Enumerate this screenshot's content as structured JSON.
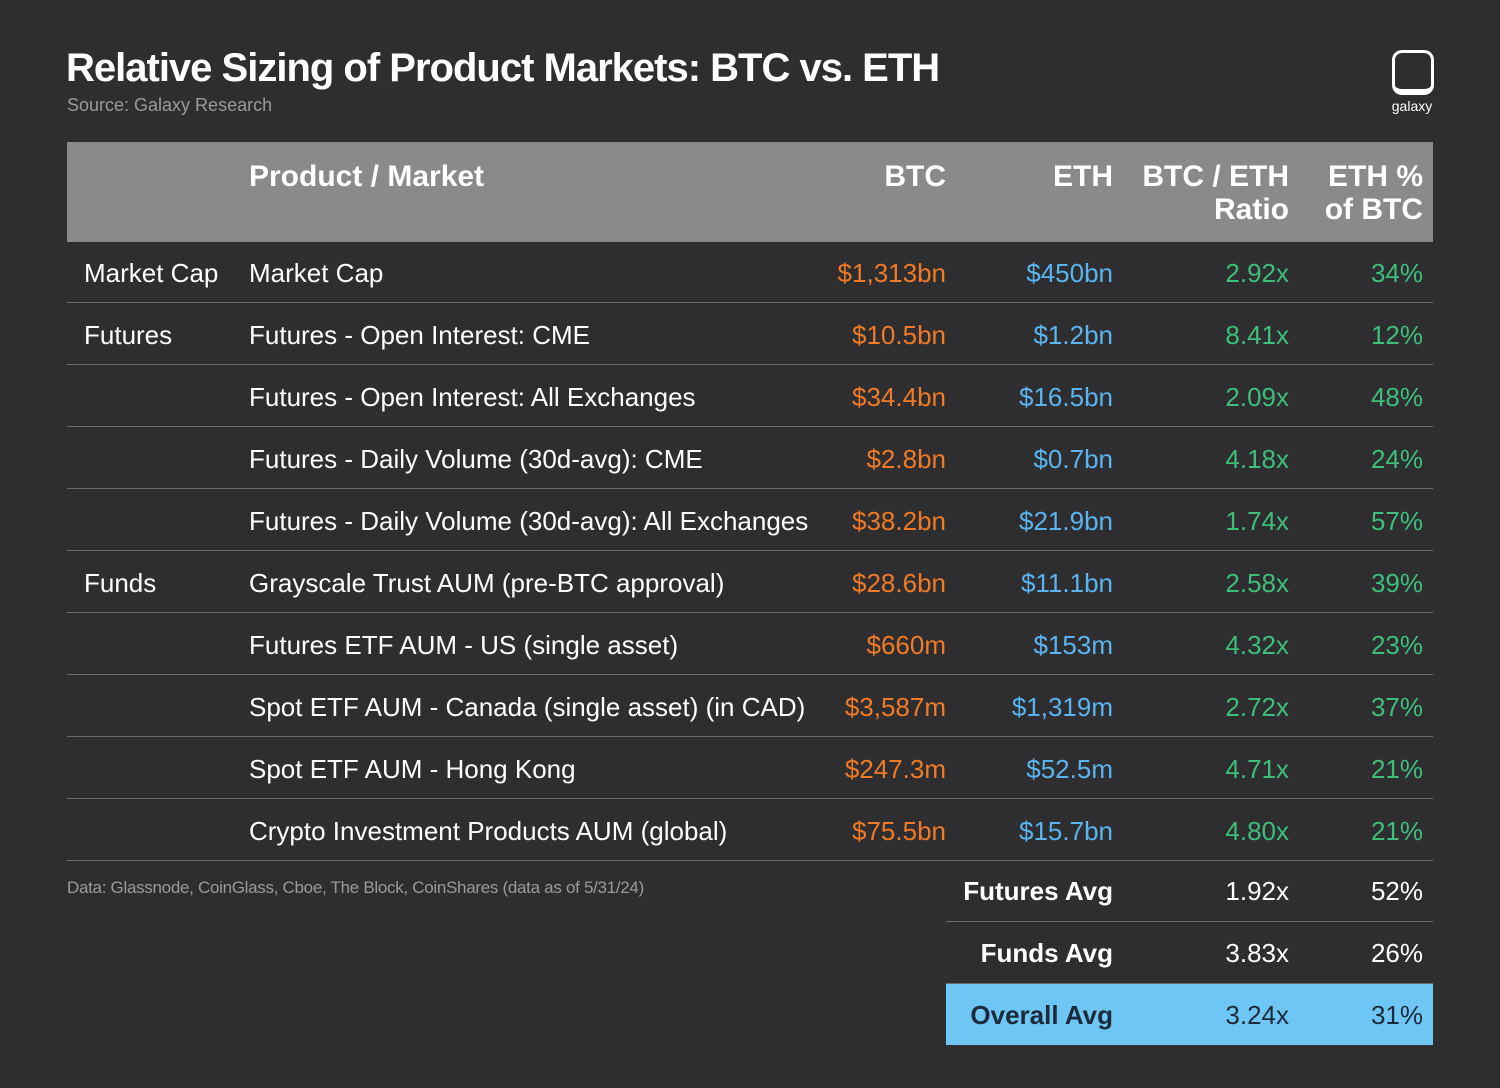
{
  "header": {
    "title": "Relative Sizing of Product Markets: BTC vs. ETH",
    "source": "Source: Galaxy Research",
    "logo": "galaxy"
  },
  "table": {
    "columns": [
      "Product / Market",
      "BTC",
      "ETH",
      "BTC / ETH Ratio",
      "ETH % of BTC"
    ],
    "rows": [
      {
        "group": "Market Cap",
        "product": "Market Cap",
        "btc": "$1,313bn",
        "eth": "$450bn",
        "ratio": "2.92x",
        "eth_pct": "34%"
      },
      {
        "group": "Futures",
        "product": "Futures - Open Interest: CME",
        "btc": "$10.5bn",
        "eth": "$1.2bn",
        "ratio": "8.41x",
        "eth_pct": "12%"
      },
      {
        "product": "Futures - Open Interest: All Exchanges",
        "btc": "$34.4bn",
        "eth": "$16.5bn",
        "ratio": "2.09x",
        "eth_pct": "48%"
      },
      {
        "product": "Futures - Daily Volume (30d-avg): CME",
        "btc": "$2.8bn",
        "eth": "$0.7bn",
        "ratio": "4.18x",
        "eth_pct": "24%"
      },
      {
        "product": "Futures - Daily Volume (30d-avg): All Exchanges",
        "btc": "$38.2bn",
        "eth": "$21.9bn",
        "ratio": "1.74x",
        "eth_pct": "57%"
      },
      {
        "group": "Funds",
        "product": "Grayscale Trust AUM (pre-BTC approval)",
        "btc": "$28.6bn",
        "eth": "$11.1bn",
        "ratio": "2.58x",
        "eth_pct": "39%"
      },
      {
        "product": "Futures ETF AUM - US (single asset)",
        "btc": "$660m",
        "eth": "$153m",
        "ratio": "4.32x",
        "eth_pct": "23%"
      },
      {
        "product": "Spot ETF AUM - Canada (single asset) (in CAD)",
        "btc": "$3,587m",
        "eth": "$1,319m",
        "ratio": "2.72x",
        "eth_pct": "37%"
      },
      {
        "product": "Spot ETF AUM - Hong Kong",
        "btc": "$247.3m",
        "eth": "$52.5m",
        "ratio": "4.71x",
        "eth_pct": "21%"
      },
      {
        "product": "Crypto Investment Products AUM (global)",
        "btc": "$75.5bn",
        "eth": "$15.7bn",
        "ratio": "4.80x",
        "eth_pct": "21%"
      }
    ]
  },
  "summary": [
    {
      "label": "Futures Avg",
      "ratio": "1.92x",
      "eth_pct": "52%"
    },
    {
      "label": "Funds Avg",
      "ratio": "3.83x",
      "eth_pct": "26%"
    },
    {
      "label": "Overall Avg",
      "ratio": "3.24x",
      "eth_pct": "31%"
    }
  ],
  "footnote": "Data: Glassnode, CoinGlass, Cboe, The Block, CoinShares (data as of 5/31/24)"
}
